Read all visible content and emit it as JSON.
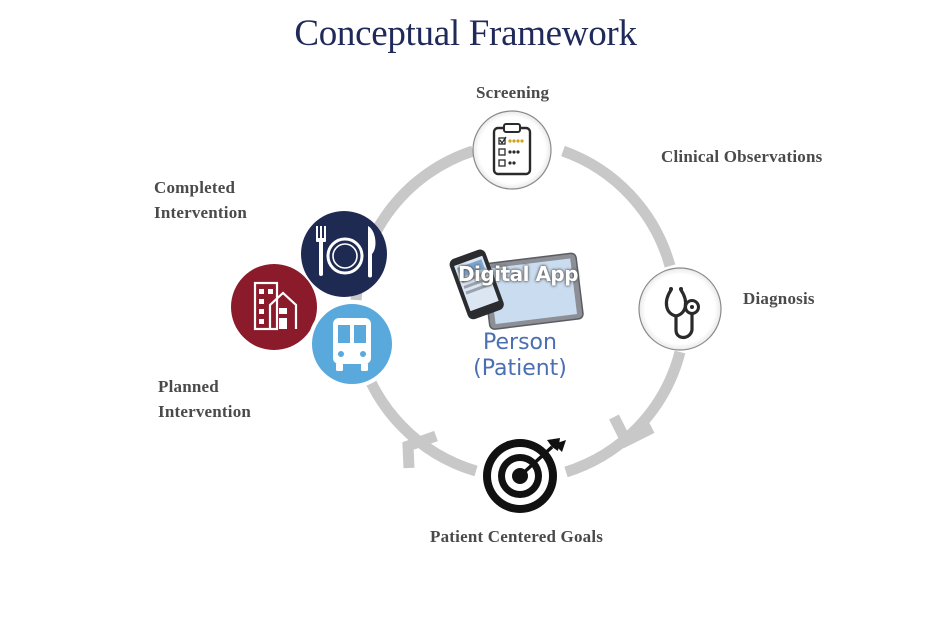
{
  "title": "Conceptual Framework",
  "stages": {
    "screening": "Screening",
    "clinical_observations": "Clinical Observations",
    "diagnosis": "Diagnosis",
    "patient_centered_goals": "Patient Centered Goals",
    "planned_intervention": [
      "Planned",
      "Intervention"
    ],
    "completed_intervention": [
      "Completed",
      "Intervention"
    ]
  },
  "center": {
    "app_label": "Digital App",
    "person_line1": "Person",
    "person_line2": "(Patient)"
  },
  "icons": {
    "screening": "clipboard-checklist-icon",
    "diagnosis": "stethoscope-icon",
    "goals": "target-arrow-icon",
    "food": "fork-plate-knife-icon",
    "housing": "buildings-icon",
    "transport": "bus-icon",
    "device": "tablet-phone-icon"
  },
  "colors": {
    "title": "#1f2a5a",
    "cycle_ring": "#c8c8c8",
    "food_circle": "#1e2a52",
    "housing_circle": "#8b1a2b",
    "transport_circle": "#5aa9dc",
    "person_text": "#4a6fb3"
  }
}
